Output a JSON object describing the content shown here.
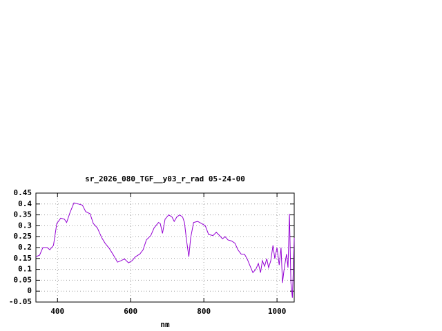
{
  "chart_data": {
    "type": "line",
    "title": "sr_2026_080_TGF__y03_r_rad 05-24-00",
    "x_label": "nm",
    "x": [
      341,
      351,
      360,
      372,
      379,
      389,
      398,
      409,
      419,
      425,
      434,
      445,
      457,
      468,
      477,
      489,
      498,
      509,
      521,
      530,
      542,
      553,
      564,
      574,
      583,
      594,
      604,
      613,
      625,
      634,
      643,
      655,
      664,
      676,
      681,
      687,
      694,
      704,
      713,
      719,
      726,
      734,
      742,
      747,
      753,
      759,
      764,
      772,
      783,
      794,
      804,
      813,
      825,
      834,
      843,
      851,
      858,
      866,
      876,
      885,
      893,
      902,
      911,
      919,
      926,
      934,
      942,
      949,
      955,
      960,
      966,
      972,
      977,
      983,
      989,
      994,
      1000,
      1006,
      1011,
      1015,
      1019,
      1023,
      1026,
      1030,
      1034,
      1038,
      1042,
      1044,
      1047
    ],
    "values": [
      0.158,
      0.165,
      0.2,
      0.2,
      0.19,
      0.21,
      0.31,
      0.335,
      0.33,
      0.315,
      0.36,
      0.405,
      0.4,
      0.395,
      0.365,
      0.355,
      0.31,
      0.29,
      0.245,
      0.22,
      0.195,
      0.165,
      0.133,
      0.14,
      0.148,
      0.13,
      0.14,
      0.158,
      0.17,
      0.19,
      0.235,
      0.255,
      0.29,
      0.315,
      0.31,
      0.265,
      0.33,
      0.35,
      0.34,
      0.32,
      0.34,
      0.35,
      0.34,
      0.315,
      0.23,
      0.158,
      0.245,
      0.315,
      0.32,
      0.31,
      0.3,
      0.26,
      0.255,
      0.27,
      0.255,
      0.24,
      0.25,
      0.235,
      0.23,
      0.22,
      0.19,
      0.17,
      0.17,
      0.146,
      0.117,
      0.085,
      0.1,
      0.127,
      0.085,
      0.14,
      0.114,
      0.149,
      0.108,
      0.14,
      0.21,
      0.149,
      0.2,
      0.12,
      0.2,
      0.038,
      0.095,
      0.14,
      0.17,
      0.108,
      0.355,
      0.038,
      -0.03,
      0.07,
      0.245
    ],
    "color": "#9400d3",
    "xlim": [
      341,
      1047
    ],
    "xticks": [
      400,
      600,
      800,
      1000
    ],
    "ylim": [
      -0.05,
      0.45
    ],
    "yticks": [
      0.45,
      0.4,
      0.35,
      0.3,
      0.25,
      0.2,
      0.15,
      0.1,
      0.05,
      0,
      -0.05
    ],
    "grid": true
  }
}
